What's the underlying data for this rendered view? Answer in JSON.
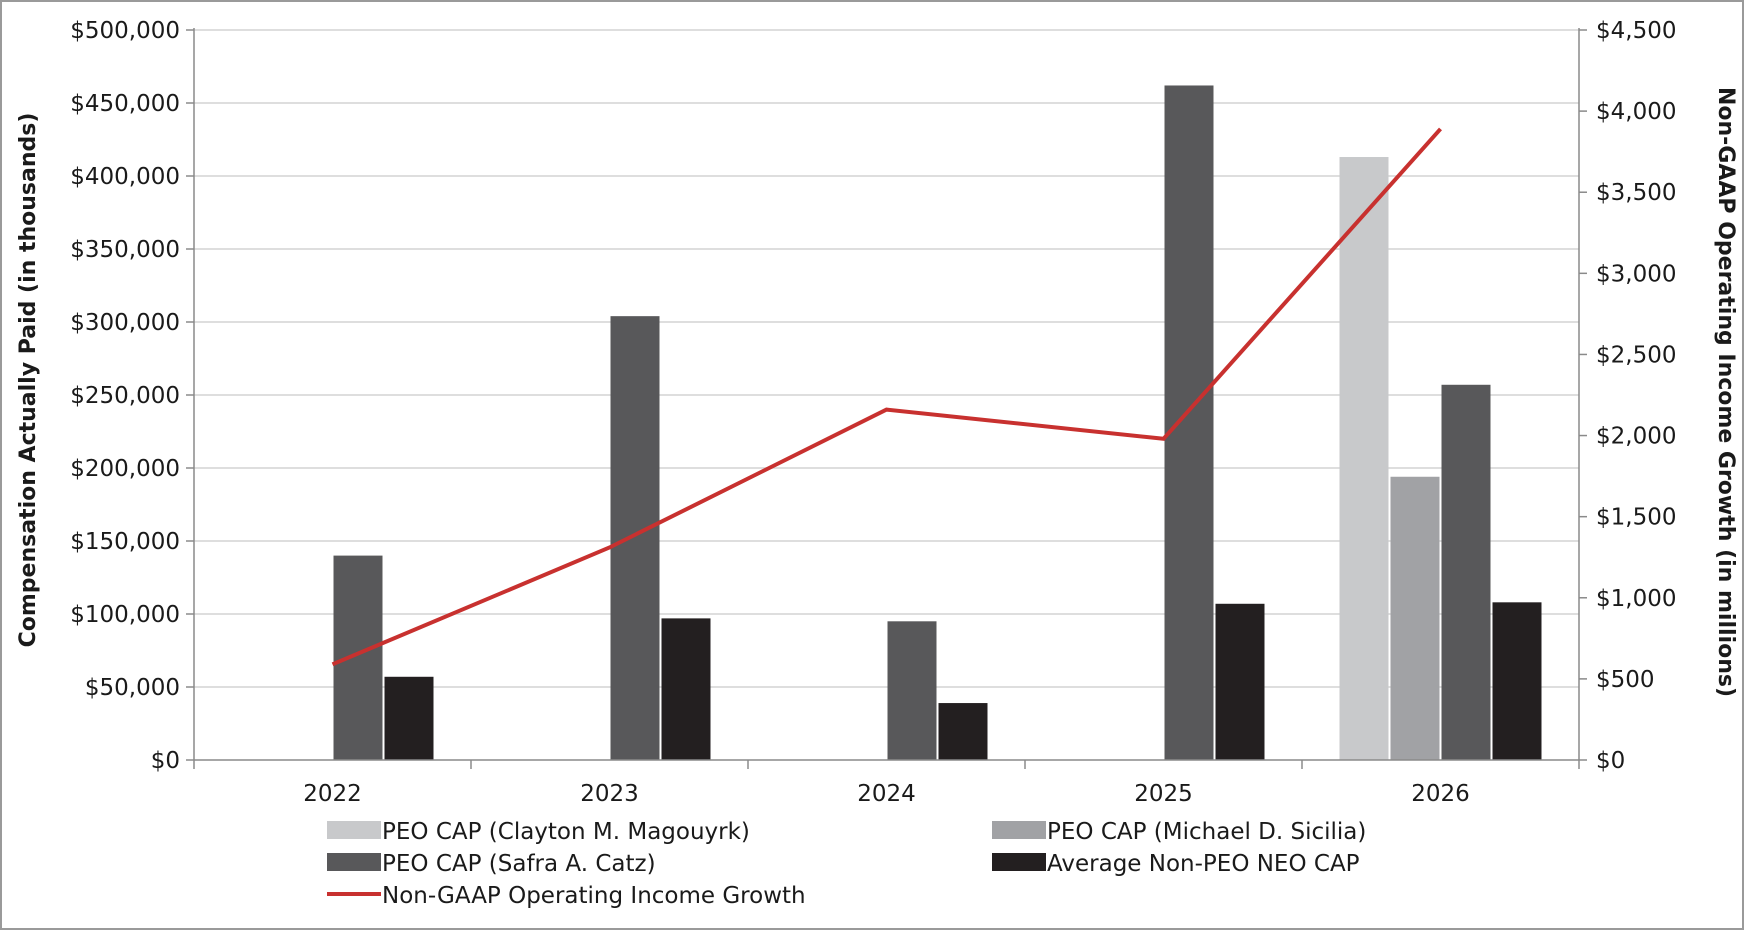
{
  "chart_data": {
    "type": "bar",
    "categories": [
      "2022",
      "2023",
      "2024",
      "2025",
      "2026"
    ],
    "series": [
      {
        "name": "PEO CAP (Clayton M. Magouyrk)",
        "axis": "left",
        "values": [
          null,
          null,
          null,
          null,
          413000
        ],
        "color": "#c8c9cb"
      },
      {
        "name": "PEO CAP (Michael D. Sicilia)",
        "axis": "left",
        "values": [
          null,
          null,
          null,
          null,
          194000
        ],
        "color": "#a1a2a5"
      },
      {
        "name": "PEO CAP (Safra A. Catz)",
        "axis": "left",
        "values": [
          140000,
          304000,
          95000,
          462000,
          257000
        ],
        "color": "#58585a"
      },
      {
        "name": "Average Non-PEO NEO CAP",
        "axis": "left",
        "values": [
          57000,
          97000,
          39000,
          107000,
          108000
        ],
        "color": "#231f20"
      },
      {
        "name": "Non-GAAP Operating Income Growth",
        "axis": "right",
        "type": "line",
        "values": [
          590,
          1310,
          2160,
          1980,
          3890
        ],
        "color": "#c8312f"
      }
    ],
    "ylabel": "Compensation Actually Paid (in thousands)",
    "y2label": "Non-GAAP Operating Income Growth (in millions)",
    "ylim": [
      0,
      500000
    ],
    "y2lim": [
      0,
      4500
    ],
    "yticks": [
      "$0",
      "$50,000",
      "$100,000",
      "$150,000",
      "$200,000",
      "$250,000",
      "$300,000",
      "$350,000",
      "$400,000",
      "$450,000",
      "$500,000"
    ],
    "y2ticks": [
      "$0",
      "$500",
      "$1,000",
      "$1,500",
      "$2,000",
      "$2,500",
      "$3,000",
      "$3,500",
      "$4,000",
      "$4,500"
    ],
    "grid": true,
    "legend_position": "bottom"
  }
}
